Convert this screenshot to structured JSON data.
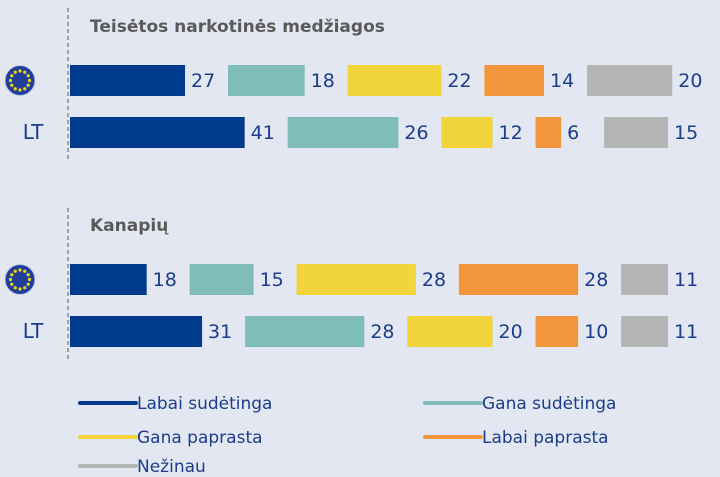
{
  "chart_data": [
    {
      "type": "bar",
      "orientation": "horizontal",
      "stacked": true,
      "title": "Teisėtos narkotinės medžiagos",
      "categories": [
        null,
        "LT"
      ],
      "series": [
        {
          "name": "Labai sudėtinga",
          "color": "#003a8c",
          "values": [
            27,
            41
          ]
        },
        {
          "name": "Gana sudėtinga",
          "color": "#7fbdbb",
          "values": [
            18,
            26
          ]
        },
        {
          "name": "Gana paprasta",
          "color": "#f1d53b",
          "values": [
            22,
            12
          ]
        },
        {
          "name": "Labai paprasta",
          "color": "#f1963a",
          "values": [
            14,
            6
          ]
        },
        {
          "name": "Nežinau",
          "color": "#b5b5b5",
          "values": [
            20,
            15
          ]
        }
      ]
    },
    {
      "type": "bar",
      "orientation": "horizontal",
      "stacked": true,
      "title": "Kanapių",
      "categories": [
        null,
        "LT"
      ],
      "series": [
        {
          "values": [
            18,
            31
          ]
        },
        {
          "values": [
            15,
            28
          ]
        },
        {
          "values": [
            28,
            20
          ]
        },
        {
          "values": [
            28,
            10
          ]
        },
        {
          "values": [
            11,
            11
          ]
        }
      ]
    }
  ]
}
